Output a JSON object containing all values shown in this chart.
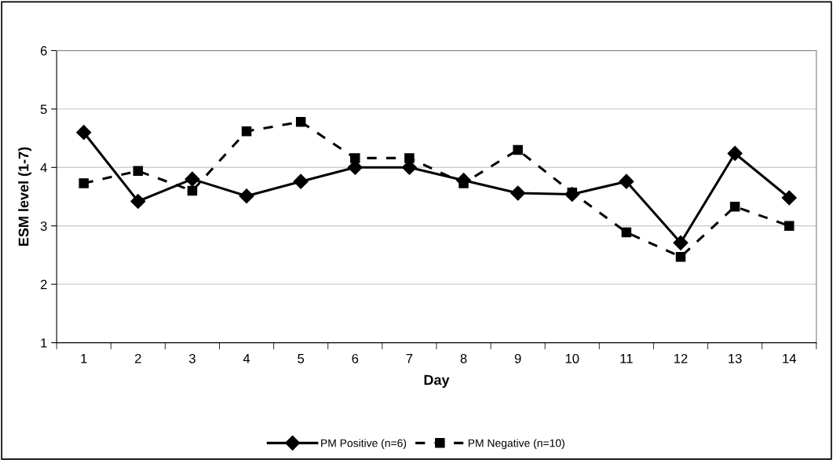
{
  "chart_data": {
    "type": "line",
    "xlabel": "Day",
    "ylabel": "ESM level (1-7)",
    "categories": [
      "1",
      "2",
      "3",
      "4",
      "5",
      "6",
      "7",
      "8",
      "9",
      "10",
      "11",
      "12",
      "13",
      "14"
    ],
    "series": [
      {
        "name": "PM Positive (n=6)",
        "color": "#000000",
        "marker": "diamond",
        "line_style": "solid",
        "values": [
          4.6,
          3.42,
          3.8,
          3.51,
          3.76,
          4.0,
          4.0,
          3.78,
          3.56,
          3.54,
          3.76,
          2.71,
          4.24,
          3.48
        ]
      },
      {
        "name": "PM Negative (n=10)",
        "color": "#000000",
        "marker": "square",
        "line_style": "dashed",
        "values": [
          3.73,
          3.94,
          3.6,
          4.62,
          4.78,
          4.16,
          4.16,
          3.73,
          4.3,
          3.57,
          2.89,
          2.47,
          3.33,
          3.0
        ]
      }
    ],
    "ylim": [
      1,
      6
    ],
    "yticks": [
      1,
      2,
      3,
      4,
      5,
      6
    ],
    "grid": "y",
    "legend": "bottom"
  }
}
